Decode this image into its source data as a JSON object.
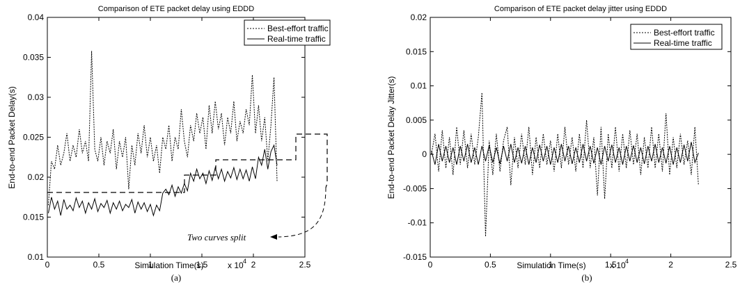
{
  "chart_data": [
    {
      "type": "line",
      "title": "Comparison of ETE packet delay using EDDD",
      "xlabel": "Simulation Time(s)",
      "x_exponent": "x 10",
      "x_exponent_power": "4",
      "ylabel": "End-to-end Packet Delay(s)",
      "caption": "(a)",
      "xlim": [
        0,
        2.5
      ],
      "ylim": [
        0.01,
        0.04
      ],
      "xticks": [
        0,
        0.5,
        1,
        1.5,
        2,
        2.5
      ],
      "xtick_labels": [
        "0",
        "0.5",
        "1",
        "1.5",
        "2",
        "2.5"
      ],
      "yticks": [
        0.01,
        0.015,
        0.02,
        0.025,
        0.03,
        0.035,
        0.04
      ],
      "ytick_labels": [
        "0.01",
        "0.015",
        "0.02",
        "0.025",
        "0.03",
        "0.035",
        "0.04"
      ],
      "legend_position": "top-right",
      "annotation": "Two curves split",
      "series": [
        {
          "name": "Best-effort traffic",
          "style": "dotted",
          "x": [
            0.01,
            0.04,
            0.07,
            0.1,
            0.13,
            0.16,
            0.19,
            0.22,
            0.25,
            0.28,
            0.31,
            0.34,
            0.37,
            0.4,
            0.43,
            0.46,
            0.49,
            0.52,
            0.55,
            0.58,
            0.61,
            0.64,
            0.67,
            0.7,
            0.73,
            0.76,
            0.79,
            0.82,
            0.85,
            0.88,
            0.91,
            0.94,
            0.97,
            1.0,
            1.03,
            1.06,
            1.09,
            1.12,
            1.15,
            1.18,
            1.21,
            1.24,
            1.27,
            1.3,
            1.33,
            1.36,
            1.39,
            1.42,
            1.45,
            1.48,
            1.51,
            1.54,
            1.57,
            1.6,
            1.63,
            1.66,
            1.69,
            1.72,
            1.75,
            1.78,
            1.81,
            1.84,
            1.87,
            1.9,
            1.93,
            1.96,
            1.99,
            2.02,
            2.05,
            2.08,
            2.11,
            2.14,
            2.17,
            2.2,
            2.23
          ],
          "values": [
            0.0165,
            0.022,
            0.021,
            0.024,
            0.0215,
            0.023,
            0.0255,
            0.022,
            0.024,
            0.0225,
            0.026,
            0.023,
            0.0245,
            0.022,
            0.0358,
            0.0235,
            0.022,
            0.025,
            0.0215,
            0.0245,
            0.023,
            0.026,
            0.021,
            0.0245,
            0.0225,
            0.025,
            0.0185,
            0.024,
            0.0215,
            0.0255,
            0.023,
            0.0265,
            0.0225,
            0.025,
            0.022,
            0.024,
            0.0205,
            0.025,
            0.0235,
            0.0265,
            0.022,
            0.025,
            0.0235,
            0.0285,
            0.0245,
            0.0225,
            0.0265,
            0.0245,
            0.028,
            0.0255,
            0.0275,
            0.0235,
            0.029,
            0.0255,
            0.0295,
            0.026,
            0.028,
            0.024,
            0.0275,
            0.0255,
            0.0295,
            0.0245,
            0.027,
            0.0255,
            0.0285,
            0.0265,
            0.0328,
            0.0255,
            0.029,
            0.0245,
            0.0275,
            0.022,
            0.0265,
            0.0325,
            0.0195
          ]
        },
        {
          "name": "Real-time traffic",
          "style": "solid",
          "x": [
            0.01,
            0.04,
            0.07,
            0.1,
            0.13,
            0.16,
            0.19,
            0.22,
            0.25,
            0.28,
            0.31,
            0.34,
            0.37,
            0.4,
            0.43,
            0.46,
            0.49,
            0.52,
            0.55,
            0.58,
            0.61,
            0.64,
            0.67,
            0.7,
            0.73,
            0.76,
            0.79,
            0.82,
            0.85,
            0.88,
            0.91,
            0.94,
            0.97,
            1.0,
            1.03,
            1.06,
            1.09,
            1.12,
            1.15,
            1.18,
            1.21,
            1.24,
            1.27,
            1.3,
            1.33,
            1.36,
            1.39,
            1.42,
            1.45,
            1.48,
            1.51,
            1.54,
            1.57,
            1.6,
            1.63,
            1.66,
            1.69,
            1.72,
            1.75,
            1.78,
            1.81,
            1.84,
            1.87,
            1.9,
            1.93,
            1.96,
            1.99,
            2.02,
            2.05,
            2.08,
            2.11,
            2.14,
            2.17,
            2.2,
            2.23
          ],
          "values": [
            0.0155,
            0.0175,
            0.016,
            0.017,
            0.0152,
            0.0172,
            0.016,
            0.0165,
            0.0158,
            0.0174,
            0.0162,
            0.017,
            0.0155,
            0.0168,
            0.016,
            0.0173,
            0.0157,
            0.0167,
            0.0162,
            0.0171,
            0.0155,
            0.0168,
            0.016,
            0.017,
            0.0158,
            0.0166,
            0.0162,
            0.0172,
            0.0155,
            0.0169,
            0.016,
            0.0168,
            0.0157,
            0.0166,
            0.0152,
            0.0165,
            0.0158,
            0.018,
            0.0185,
            0.0178,
            0.019,
            0.0176,
            0.0188,
            0.018,
            0.0192,
            0.0183,
            0.0205,
            0.0195,
            0.021,
            0.0198,
            0.0205,
            0.0192,
            0.0208,
            0.0196,
            0.0212,
            0.0198,
            0.021,
            0.0195,
            0.0207,
            0.0199,
            0.0212,
            0.0197,
            0.021,
            0.0198,
            0.0209,
            0.0195,
            0.0213,
            0.0198,
            0.0225,
            0.0215,
            0.0235,
            0.021,
            0.0232,
            0.024,
            0.0215
          ]
        }
      ]
    },
    {
      "type": "line",
      "title": "Comparison of ETE packet delay jitter using EDDD",
      "xlabel": "Simulation Time(s)",
      "x_exponent": "x 10",
      "x_exponent_power": "4",
      "ylabel": "End-to-end Packet Delay Jitter(s)",
      "caption": "(b)",
      "xlim": [
        0,
        2.5
      ],
      "ylim": [
        -0.015,
        0.02
      ],
      "xticks": [
        0,
        0.5,
        1,
        1.5,
        2,
        2.5
      ],
      "xtick_labels": [
        "0",
        "0.5",
        "1",
        "1.5",
        "2",
        "2.5"
      ],
      "yticks": [
        -0.015,
        -0.01,
        -0.005,
        0,
        0.005,
        0.01,
        0.015,
        0.02
      ],
      "ytick_labels": [
        "-0.015",
        "-0.01",
        "-0.005",
        "0",
        "0.005",
        "0.01",
        "0.015",
        "0.02"
      ],
      "legend_position": "top-right",
      "series": [
        {
          "name": "Best-effort traffic",
          "style": "dotted",
          "x": [
            0.01,
            0.04,
            0.07,
            0.1,
            0.13,
            0.16,
            0.19,
            0.22,
            0.25,
            0.28,
            0.31,
            0.34,
            0.37,
            0.4,
            0.43,
            0.46,
            0.49,
            0.52,
            0.55,
            0.58,
            0.61,
            0.64,
            0.67,
            0.7,
            0.73,
            0.76,
            0.79,
            0.82,
            0.85,
            0.88,
            0.91,
            0.94,
            0.97,
            1.0,
            1.03,
            1.06,
            1.09,
            1.12,
            1.15,
            1.18,
            1.21,
            1.24,
            1.27,
            1.3,
            1.33,
            1.36,
            1.39,
            1.42,
            1.45,
            1.48,
            1.51,
            1.54,
            1.57,
            1.6,
            1.63,
            1.66,
            1.69,
            1.72,
            1.75,
            1.78,
            1.81,
            1.84,
            1.87,
            1.9,
            1.93,
            1.96,
            1.99,
            2.02,
            2.05,
            2.08,
            2.11,
            2.14,
            2.17,
            2.2,
            2.23
          ],
          "values": [
            0.0,
            0.003,
            -0.0025,
            0.0035,
            -0.002,
            0.0025,
            -0.003,
            0.004,
            -0.0015,
            0.0035,
            -0.002,
            0.003,
            -0.0015,
            0.0025,
            0.009,
            -0.012,
            0.002,
            -0.003,
            0.003,
            -0.0025,
            0.002,
            0.004,
            -0.0045,
            0.0025,
            -0.002,
            0.003,
            -0.0015,
            0.004,
            -0.003,
            0.0025,
            -0.002,
            0.003,
            -0.0015,
            0.002,
            -0.0025,
            0.003,
            -0.002,
            0.004,
            -0.0015,
            0.0025,
            -0.0025,
            0.003,
            -0.002,
            0.005,
            -0.002,
            0.0025,
            -0.006,
            0.004,
            -0.0065,
            0.003,
            -0.002,
            0.004,
            -0.0025,
            0.003,
            -0.002,
            0.0035,
            -0.0015,
            0.003,
            -0.003,
            0.0025,
            -0.002,
            0.004,
            -0.002,
            0.003,
            -0.0025,
            0.006,
            -0.003,
            0.0025,
            -0.002,
            0.003,
            -0.0015,
            0.002,
            -0.003,
            0.004,
            -0.0045
          ]
        },
        {
          "name": "Real-time traffic",
          "style": "solid",
          "x": [
            0.01,
            0.04,
            0.07,
            0.1,
            0.13,
            0.16,
            0.19,
            0.22,
            0.25,
            0.28,
            0.31,
            0.34,
            0.37,
            0.4,
            0.43,
            0.46,
            0.49,
            0.52,
            0.55,
            0.58,
            0.61,
            0.64,
            0.67,
            0.7,
            0.73,
            0.76,
            0.79,
            0.82,
            0.85,
            0.88,
            0.91,
            0.94,
            0.97,
            1.0,
            1.03,
            1.06,
            1.09,
            1.12,
            1.15,
            1.18,
            1.21,
            1.24,
            1.27,
            1.3,
            1.33,
            1.36,
            1.39,
            1.42,
            1.45,
            1.48,
            1.51,
            1.54,
            1.57,
            1.6,
            1.63,
            1.66,
            1.69,
            1.72,
            1.75,
            1.78,
            1.81,
            1.84,
            1.87,
            1.9,
            1.93,
            1.96,
            1.99,
            2.02,
            2.05,
            2.08,
            2.11,
            2.14,
            2.17,
            2.2,
            2.23
          ],
          "values": [
            0.0005,
            -0.0015,
            0.0015,
            -0.001,
            0.0012,
            -0.0012,
            0.001,
            -0.0015,
            0.0012,
            -0.001,
            0.0015,
            -0.0012,
            0.001,
            -0.0015,
            0.0012,
            -0.001,
            0.0013,
            -0.0012,
            0.001,
            -0.0014,
            0.0012,
            -0.001,
            0.0015,
            -0.0012,
            0.001,
            -0.0013,
            0.0012,
            -0.0015,
            0.001,
            -0.0012,
            0.0014,
            -0.001,
            0.0012,
            -0.0015,
            0.001,
            -0.0012,
            0.0015,
            -0.001,
            0.0012,
            -0.0014,
            0.001,
            -0.0012,
            0.0015,
            -0.001,
            0.0012,
            -0.0013,
            0.001,
            -0.0015,
            0.0012,
            -0.001,
            0.0014,
            -0.0012,
            0.001,
            -0.0015,
            0.0012,
            -0.001,
            0.0013,
            -0.0012,
            0.001,
            -0.0014,
            0.0012,
            -0.001,
            0.0015,
            -0.0012,
            0.001,
            -0.0013,
            0.0012,
            -0.0015,
            0.001,
            -0.0012,
            0.0014,
            -0.001,
            0.0018,
            -0.0012,
            0.0002
          ]
        }
      ]
    }
  ]
}
